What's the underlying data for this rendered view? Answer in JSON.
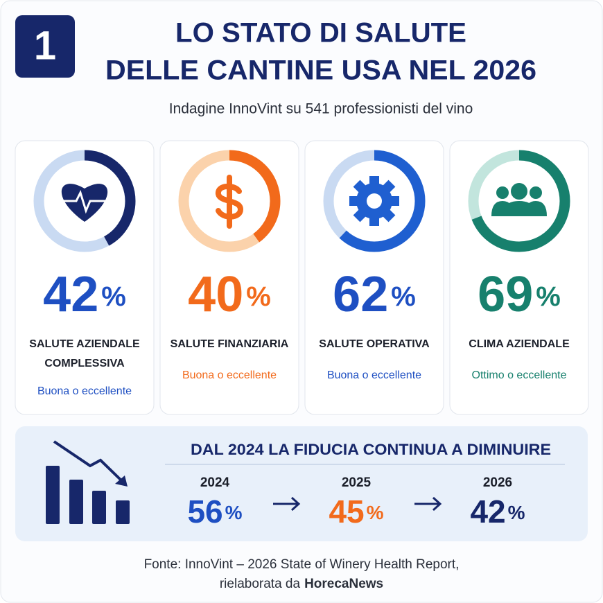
{
  "badge": "1",
  "title": [
    "LO STATO DI SALUTE",
    "DELLE CANTINE USA NEL 2026"
  ],
  "subtitle": "Indagine InnoVint su 541 professionisti del vino",
  "cards": [
    {
      "value": 42,
      "unit": "%",
      "label": [
        "SALUTE AZIENDALE",
        "COMPLESSIVA"
      ],
      "note": "Buona o eccellente",
      "color": "#1e4fc2",
      "ring_color": "#17276a",
      "track_color": "#c9daf2"
    },
    {
      "value": 40,
      "unit": "%",
      "label": [
        "SALUTE FINANZIARIA"
      ],
      "note": "Buona o eccellente",
      "color": "#f26a1b",
      "ring_color": "#f26a1b",
      "track_color": "#fbd2ab"
    },
    {
      "value": 62,
      "unit": "%",
      "label": [
        "SALUTE OPERATIVA"
      ],
      "note": "Buona o eccellente",
      "color": "#1e4fc2",
      "ring_color": "#1f5fd0",
      "track_color": "#c9daf2"
    },
    {
      "value": 69,
      "unit": "%",
      "label": [
        "CLIMA AZIENDALE"
      ],
      "note": "Ottimo o eccellente",
      "color": "#17806d",
      "ring_color": "#17806d",
      "track_color": "#c2e5dd"
    }
  ],
  "trend": {
    "title": "DAL 2024 LA FIDUCIA CONTINUA A DIMINUIRE",
    "points": [
      {
        "year": "2024",
        "value": 56,
        "unit": "%",
        "color": "#1e4fc2"
      },
      {
        "year": "2025",
        "value": 45,
        "unit": "%",
        "color": "#f26a1b"
      },
      {
        "year": "2026",
        "value": 42,
        "unit": "%",
        "color": "#17276a"
      }
    ]
  },
  "footer": {
    "line1": "Fonte: InnoVint – 2026 State of Winery Health Report,",
    "line2": "rielaborata da",
    "brand": "HorecaNews"
  }
}
